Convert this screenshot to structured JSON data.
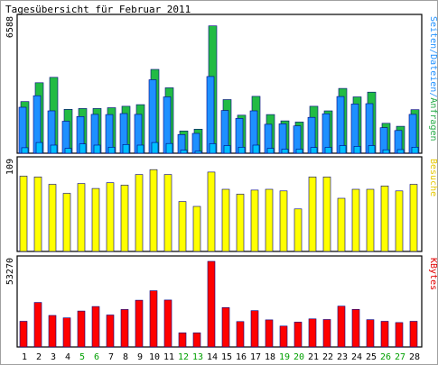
{
  "title": "Tagesübersicht für Februar 2011",
  "chart_data": [
    {
      "type": "bar",
      "panel": "top",
      "ylabel_parts": [
        {
          "text": "Seiten",
          "color": "#1e90ff"
        },
        {
          "text": "/",
          "color": "#1e90ff"
        },
        {
          "text": "Dateien",
          "color": "#1e90ff"
        },
        {
          "text": "/",
          "color": "#1e90ff"
        },
        {
          "text": "Anfragen",
          "color": "#22aa44"
        }
      ],
      "ymax_label": "6588",
      "ylim": [
        0,
        6588
      ],
      "categories": [
        "1",
        "2",
        "3",
        "4",
        "5",
        "6",
        "7",
        "8",
        "9",
        "10",
        "11",
        "12",
        "13",
        "14",
        "15",
        "16",
        "17",
        "18",
        "19",
        "20",
        "21",
        "22",
        "23",
        "24",
        "25",
        "26",
        "27",
        "28"
      ],
      "series": [
        {
          "name": "Anfragen",
          "color": "#22bb44",
          "values": [
            2550,
            3480,
            3750,
            2170,
            2210,
            2210,
            2250,
            2320,
            2400,
            4140,
            3230,
            1100,
            1190,
            6290,
            2650,
            1880,
            2810,
            1910,
            1600,
            1540,
            2320,
            2090,
            3200,
            2780,
            3020,
            1480,
            1330,
            2150
          ]
        },
        {
          "name": "Dateien",
          "color": "#1e90ff",
          "values": [
            2270,
            2840,
            2090,
            1580,
            1810,
            1920,
            1910,
            1960,
            1920,
            3630,
            2780,
            920,
            980,
            3790,
            2110,
            1720,
            2090,
            1430,
            1450,
            1350,
            1770,
            1950,
            2800,
            2430,
            2450,
            1260,
            1120,
            1920
          ]
        },
        {
          "name": "Seiten",
          "color": "#00bfff",
          "values": [
            270,
            530,
            400,
            240,
            460,
            400,
            300,
            430,
            400,
            530,
            480,
            150,
            100,
            470,
            380,
            300,
            400,
            240,
            200,
            200,
            280,
            290,
            380,
            340,
            380,
            170,
            180,
            300
          ]
        }
      ]
    },
    {
      "type": "bar",
      "panel": "middle",
      "ylabel_parts": [
        {
          "text": "Besuche",
          "color": "#e6c800"
        }
      ],
      "ymax_label": "109",
      "ylim": [
        0,
        109
      ],
      "categories": [
        "1",
        "2",
        "3",
        "4",
        "5",
        "6",
        "7",
        "8",
        "9",
        "10",
        "11",
        "12",
        "13",
        "14",
        "15",
        "16",
        "17",
        "18",
        "19",
        "20",
        "21",
        "22",
        "23",
        "24",
        "25",
        "26",
        "27",
        "28"
      ],
      "series": [
        {
          "name": "Besuche",
          "color": "#ffff00",
          "values": [
            92,
            91,
            82,
            71,
            83,
            77,
            84,
            81,
            94,
            100,
            94,
            61,
            55,
            97,
            76,
            70,
            75,
            76,
            74,
            52,
            91,
            91,
            65,
            76,
            76,
            80,
            74,
            82
          ]
        }
      ]
    },
    {
      "type": "bar",
      "panel": "bottom",
      "ylabel_parts": [
        {
          "text": "KBytes",
          "color": "#e00000"
        }
      ],
      "ymax_label": "53270",
      "ylim": [
        0,
        53270
      ],
      "categories": [
        "1",
        "2",
        "3",
        "4",
        "5",
        "6",
        "7",
        "8",
        "9",
        "10",
        "11",
        "12",
        "13",
        "14",
        "15",
        "16",
        "17",
        "18",
        "19",
        "20",
        "21",
        "22",
        "23",
        "24",
        "25",
        "26",
        "27",
        "28"
      ],
      "series": [
        {
          "name": "KBytes",
          "color": "#ff0000",
          "values": [
            16000,
            27700,
            19600,
            18100,
            22400,
            25200,
            19900,
            23300,
            29100,
            35000,
            29200,
            8800,
            8800,
            53270,
            24500,
            15800,
            22600,
            16900,
            13000,
            15500,
            17500,
            17100,
            25400,
            23400,
            17000,
            16000,
            15200,
            16000
          ]
        }
      ]
    }
  ],
  "weekend_days": [
    "5",
    "6",
    "12",
    "13",
    "19",
    "20",
    "26",
    "27"
  ],
  "colors": {
    "weekday_label": "#000000",
    "weekend_label": "#00a000",
    "bar_outline": "#000080",
    "panel_border": "#000000"
  }
}
